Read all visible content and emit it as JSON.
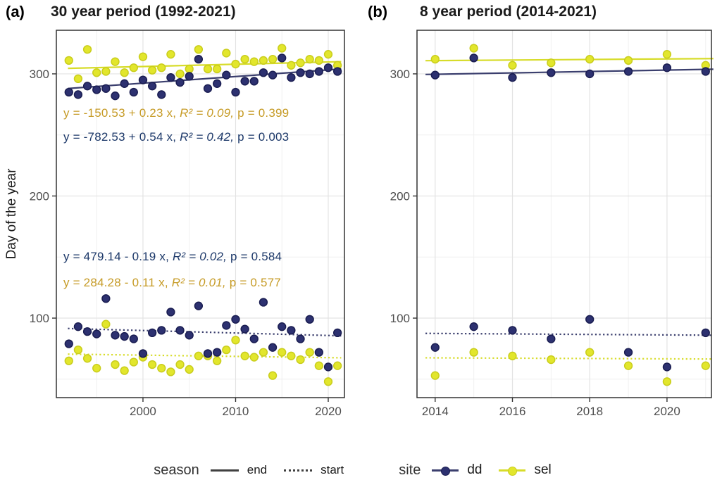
{
  "figure": {
    "panel_a_tag": "(a)",
    "panel_a_title": "30 year period (1992-2021)",
    "panel_b_tag": "(b)",
    "panel_b_title": "8 year period (2014-2021)",
    "y_axis_label": "Day of the year"
  },
  "legend": {
    "season_label": "season",
    "end_label": "end",
    "start_label": "start",
    "site_label": "site",
    "dd_label": "dd",
    "sel_label": "sel"
  },
  "colors": {
    "dd_point": "#2d3170",
    "dd_point_stroke": "#1a1d51",
    "dd_line": "#3b3f6e",
    "sel_point": "#e2e62c",
    "sel_point_stroke": "#c9cd1c",
    "sel_line": "#d7dc2a",
    "dd_text": "#1c3869",
    "sel_text": "#c69b26",
    "axis_text": "#4d4d4d",
    "panel_border": "#333333",
    "grid_major": "#e3e3e3",
    "grid_minor": "#f0f0f0",
    "season_key": "#404040"
  },
  "chart_data": [
    {
      "type": "scatter",
      "panel": "a",
      "title": "30 year period (1992-2021)",
      "xlabel": "",
      "ylabel": "Day of the year",
      "x_domain": [
        1990.65,
        2021.75
      ],
      "y_domain": [
        34.9,
        335.7
      ],
      "x_ticks": [
        2000,
        2010,
        2020
      ],
      "x_minor": [
        1995,
        2005,
        2015
      ],
      "y_ticks": [
        100,
        200,
        300
      ],
      "y_minor": [
        50,
        150,
        250
      ],
      "years": [
        1992,
        1993,
        1994,
        1995,
        1996,
        1997,
        1998,
        1999,
        2000,
        2001,
        2002,
        2003,
        2004,
        2005,
        2006,
        2007,
        2008,
        2009,
        2010,
        2011,
        2012,
        2013,
        2014,
        2015,
        2016,
        2017,
        2018,
        2019,
        2020,
        2021
      ],
      "series": [
        {
          "name": "sel end",
          "site": "sel",
          "season": "end",
          "values": [
            311,
            296,
            320,
            301,
            302,
            310,
            301,
            305,
            314,
            303,
            305,
            316,
            300,
            304,
            320,
            304,
            304,
            317,
            308,
            312,
            310,
            311,
            312,
            321,
            307,
            309,
            312,
            311,
            316,
            307
          ]
        },
        {
          "name": "sel start",
          "site": "sel",
          "season": "start",
          "values": [
            65,
            74,
            67,
            59,
            95,
            62,
            57,
            64,
            68,
            62,
            59,
            56,
            62,
            58,
            69,
            69,
            65,
            74,
            82,
            69,
            68,
            72,
            53,
            72,
            69,
            66,
            72,
            61,
            48,
            61
          ]
        },
        {
          "name": "dd end",
          "site": "dd",
          "season": "end",
          "values": [
            285,
            283,
            290,
            287,
            288,
            282,
            292,
            285,
            295,
            290,
            283,
            297,
            293,
            298,
            312,
            288,
            292,
            299,
            285,
            294,
            294,
            301,
            299,
            313,
            297,
            301,
            300,
            302,
            305,
            302
          ]
        },
        {
          "name": "dd start",
          "site": "dd",
          "season": "start",
          "values": [
            79,
            93,
            89,
            87,
            116,
            86,
            85,
            83,
            71,
            88,
            90,
            105,
            90,
            86,
            110,
            71,
            72,
            94,
            99,
            91,
            83,
            113,
            76,
            93,
            90,
            83,
            99,
            72,
            60,
            88
          ]
        }
      ],
      "trends": [
        {
          "site": "sel",
          "season": "end",
          "x": [
            1991.9,
            2021.4
          ],
          "y": [
            304.5,
            310.0
          ]
        },
        {
          "site": "dd",
          "season": "end",
          "x": [
            1991.9,
            2021.4
          ],
          "y": [
            288.0,
            304.0
          ]
        },
        {
          "site": "dd",
          "season": "start",
          "x": [
            1991.9,
            2021.4
          ],
          "y": [
            91.5,
            85.5
          ]
        },
        {
          "site": "sel",
          "season": "start",
          "x": [
            1991.9,
            2021.4
          ],
          "y": [
            70.5,
            67.5
          ]
        }
      ],
      "annotations": [
        {
          "site": "sel",
          "pre": "y = -150.53 + 0.23 x, ",
          "mid": "R² = 0.09,",
          "post": " p = 0.399"
        },
        {
          "site": "dd",
          "pre": "y = -782.53 + 0.54 x, ",
          "mid": "R² = 0.42,",
          "post": " p = 0.003"
        },
        {
          "site": "dd",
          "pre": "y = 479.14 - 0.19 x, ",
          "mid": "R² = 0.02,",
          "post": " p = 0.584"
        },
        {
          "site": "sel",
          "pre": "y = 284.28 - 0.11 x, ",
          "mid": "R² = 0.01,",
          "post": " p = 0.577"
        }
      ]
    },
    {
      "type": "scatter",
      "panel": "b",
      "title": "8 year period (2014-2021)",
      "xlabel": "",
      "ylabel": "Day of the year",
      "x_domain": [
        2013.53,
        2021.15
      ],
      "y_domain": [
        34.9,
        335.7
      ],
      "x_ticks": [
        2014,
        2016,
        2018,
        2020
      ],
      "x_minor": [
        2015,
        2017,
        2019,
        2021
      ],
      "y_ticks": [
        100,
        200,
        300
      ],
      "y_minor": [
        50,
        150,
        250
      ],
      "years": [
        2014,
        2015,
        2016,
        2017,
        2018,
        2019,
        2020,
        2021
      ],
      "series": [
        {
          "name": "sel end",
          "site": "sel",
          "season": "end",
          "values": [
            312,
            321,
            307,
            309,
            312,
            311,
            316,
            307
          ]
        },
        {
          "name": "sel start",
          "site": "sel",
          "season": "start",
          "values": [
            53,
            72,
            69,
            66,
            72,
            61,
            48,
            61
          ]
        },
        {
          "name": "dd end",
          "site": "dd",
          "season": "end",
          "values": [
            299,
            313,
            297,
            301,
            300,
            302,
            305,
            302
          ]
        },
        {
          "name": "dd start",
          "site": "dd",
          "season": "start",
          "values": [
            76,
            93,
            90,
            83,
            99,
            72,
            60,
            88
          ]
        }
      ],
      "trends": [
        {
          "site": "sel",
          "season": "end",
          "x": [
            2013.75,
            2021.2
          ],
          "y": [
            310.8,
            312.5
          ]
        },
        {
          "site": "dd",
          "season": "end",
          "x": [
            2013.75,
            2021.2
          ],
          "y": [
            299.5,
            303.8
          ]
        },
        {
          "site": "dd",
          "season": "start",
          "x": [
            2013.75,
            2021.2
          ],
          "y": [
            87.5,
            86.0
          ]
        },
        {
          "site": "sel",
          "season": "start",
          "x": [
            2013.75,
            2021.2
          ],
          "y": [
            67.5,
            66.5
          ]
        }
      ],
      "annotations": []
    }
  ]
}
